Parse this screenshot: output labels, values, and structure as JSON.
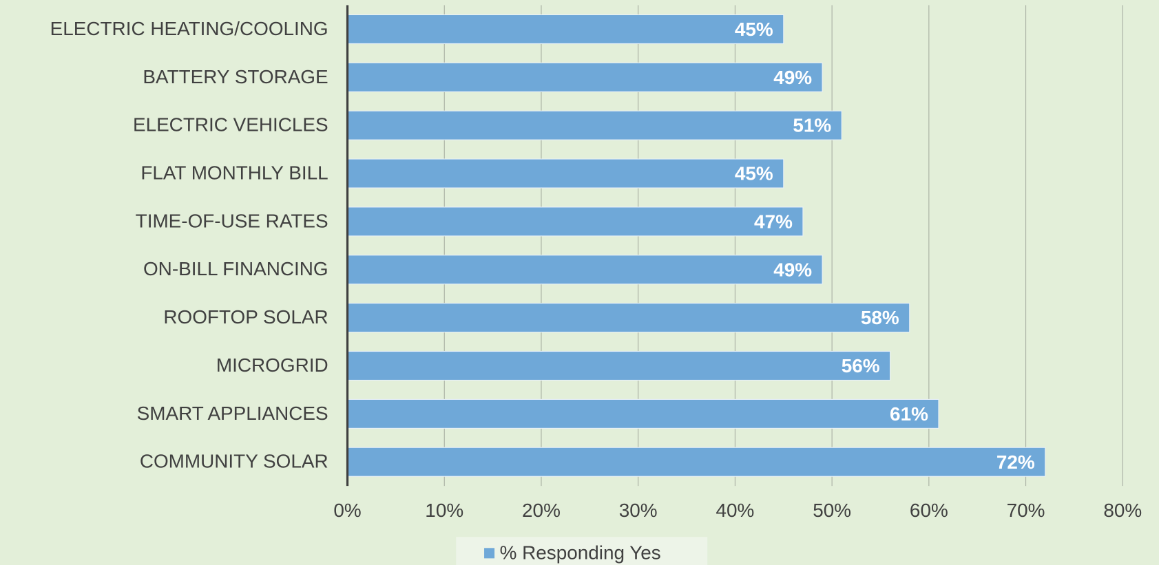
{
  "chart_data": {
    "type": "bar",
    "orientation": "horizontal",
    "categories": [
      "ELECTRIC HEATING/COOLING",
      "BATTERY STORAGE",
      "ELECTRIC VEHICLES",
      "FLAT MONTHLY BILL",
      "TIME-OF-USE RATES",
      "ON-BILL FINANCING",
      "ROOFTOP SOLAR",
      "MICROGRID",
      "SMART APPLIANCES",
      "COMMUNITY SOLAR"
    ],
    "series": [
      {
        "name": "% Responding Yes",
        "color": "#6fa8d8",
        "values": [
          45,
          49,
          51,
          45,
          47,
          49,
          58,
          56,
          61,
          72
        ],
        "value_labels": [
          "45%",
          "49%",
          "51%",
          "45%",
          "47%",
          "49%",
          "58%",
          "56%",
          "61%",
          "72%"
        ]
      }
    ],
    "xlim": [
      0,
      80
    ],
    "xticks": [
      {
        "value": 0,
        "label": "0%"
      },
      {
        "value": 10,
        "label": "10%"
      },
      {
        "value": 20,
        "label": "20%"
      },
      {
        "value": 30,
        "label": "30%"
      },
      {
        "value": 40,
        "label": "40%"
      },
      {
        "value": 50,
        "label": "50%"
      },
      {
        "value": 60,
        "label": "60%"
      },
      {
        "value": 70,
        "label": "70%"
      },
      {
        "value": 80,
        "label": "80%"
      }
    ],
    "grid": true,
    "legend": "bottom"
  }
}
